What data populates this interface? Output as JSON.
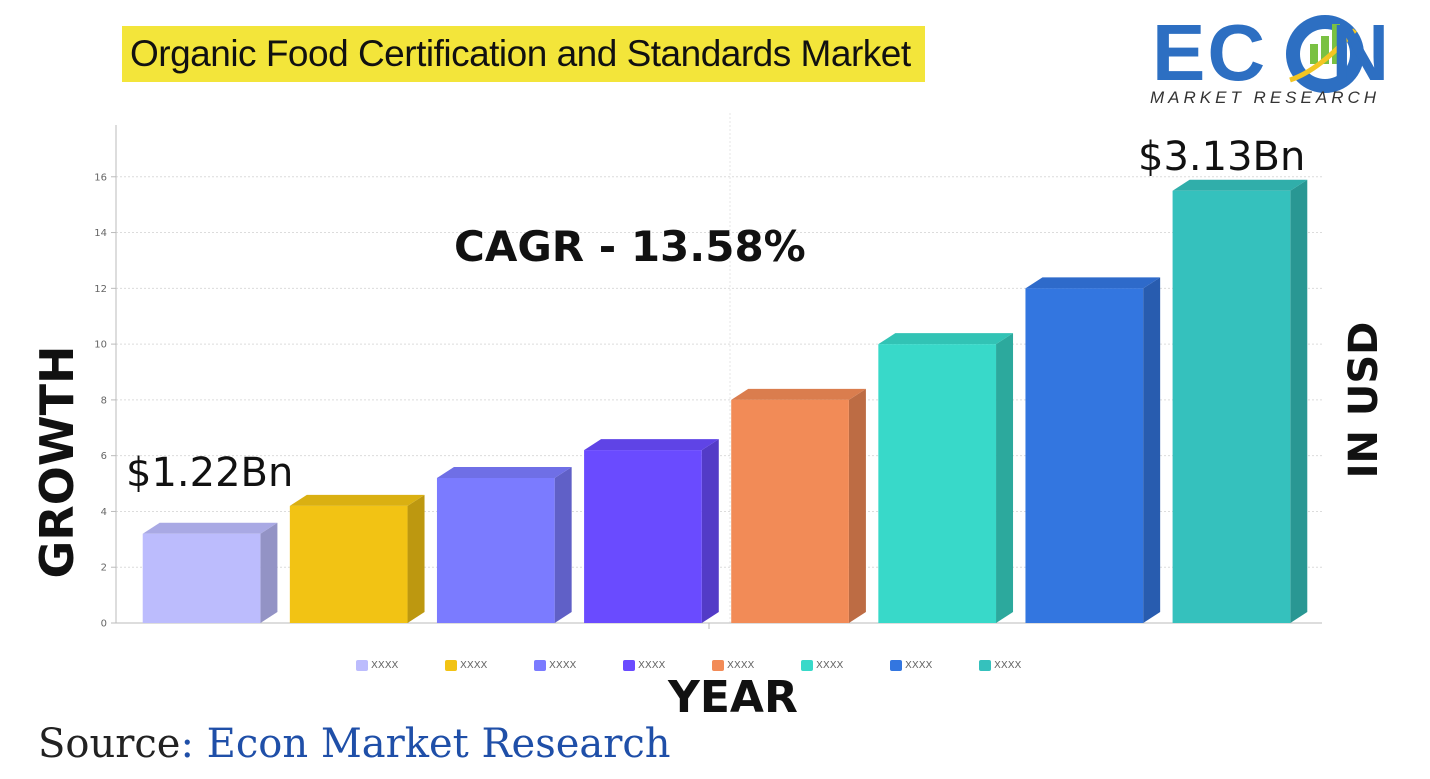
{
  "title": "Organic Food Certification and Standards Market",
  "logo": {
    "text": "ECON",
    "subtitle": "MARKET RESEARCH",
    "colors": {
      "primary": "#2d6fc2",
      "accent": "#f3c623",
      "bars": "#7ac143"
    }
  },
  "chart_data": {
    "type": "bar",
    "style": "3d-bars",
    "categories": [
      "XXXX",
      "XXXX",
      "XXXX",
      "XXXX",
      "XXXX",
      "XXXX",
      "XXXX",
      "XXXX"
    ],
    "values": [
      3.2,
      4.2,
      5.2,
      6.2,
      8.0,
      10.0,
      12.0,
      15.5
    ],
    "colors": [
      "#bcbcfd",
      "#f2c314",
      "#7b7bff",
      "#6a4bff",
      "#f28b57",
      "#38d9c9",
      "#3376e0",
      "#35c1bd"
    ],
    "ylim": [
      0,
      18
    ],
    "yticks": [
      0,
      2,
      4,
      6,
      8,
      10,
      12,
      14,
      16
    ],
    "ylabel": "GROWTH",
    "xlabel": "YEAR",
    "right_label": "IN USD",
    "grid": true,
    "legend_position": "bottom",
    "annotations": {
      "cagr": "CAGR - 13.58%",
      "first_value": "$1.22Bn",
      "last_value": "$3.13Bn"
    }
  },
  "source": {
    "prefix": "Source",
    "separator": ": ",
    "name": "Econ Market Research"
  }
}
